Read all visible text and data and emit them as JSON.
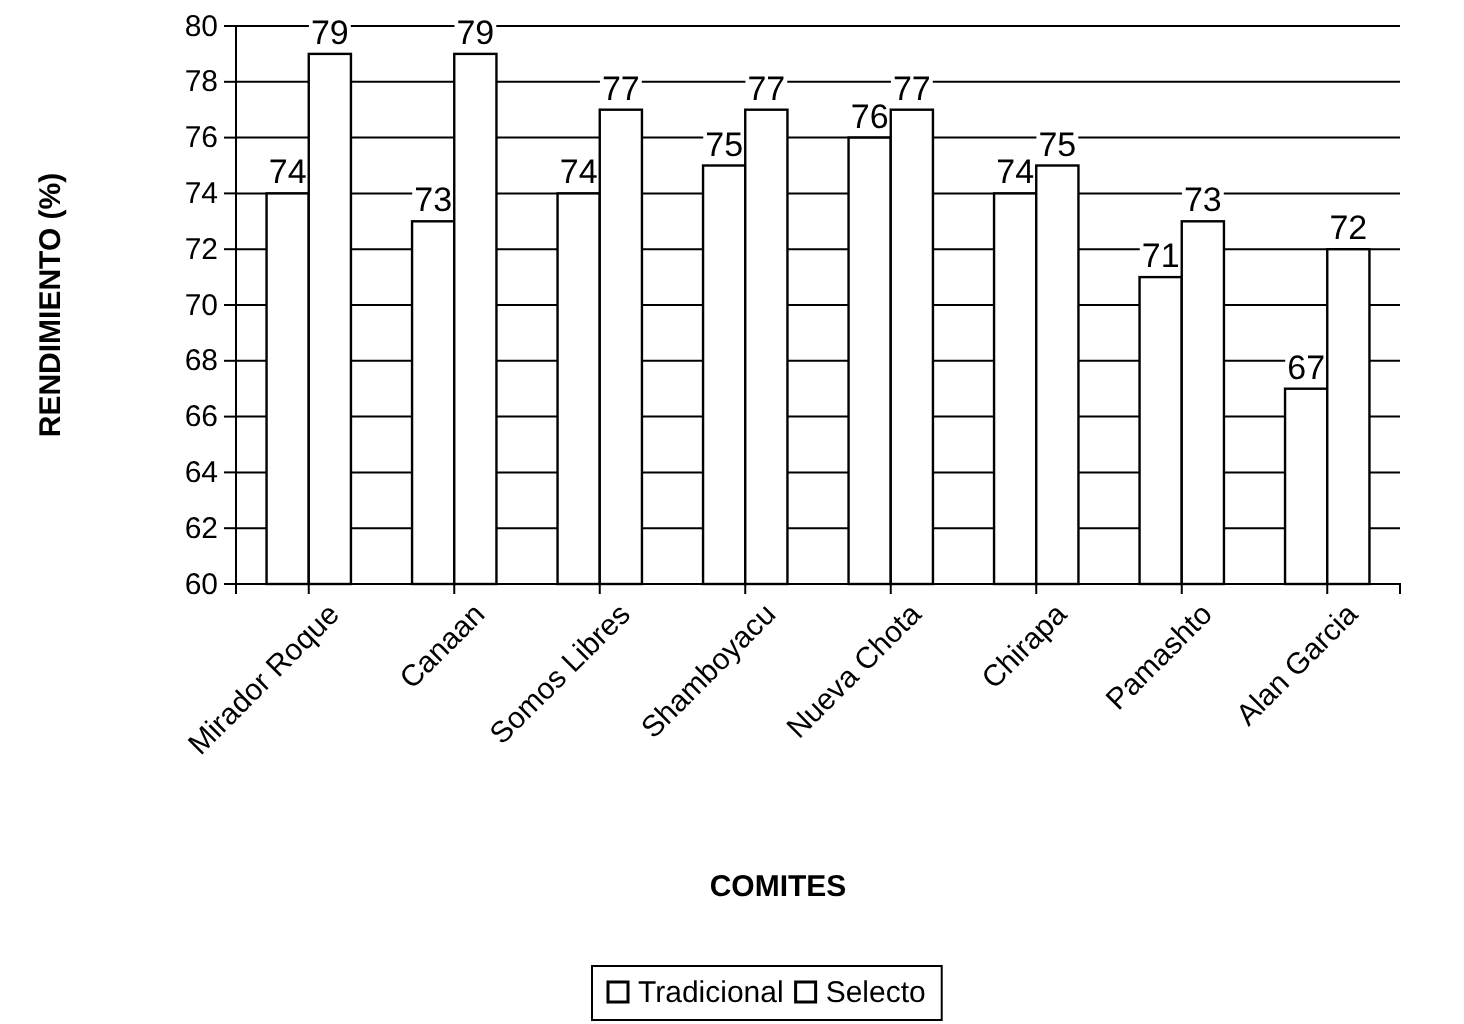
{
  "chart_data": {
    "type": "bar",
    "xlabel": "COMITES",
    "ylabel": "RENDIMIENTO (%)",
    "categories": [
      "Mirador Roque",
      "Canaan",
      "Somos Libres",
      "Shamboyacu",
      "Nueva Chota",
      "Chirapa",
      "Pamashto",
      "Alan Garcia"
    ],
    "series": [
      {
        "name": "Tradicional",
        "color": "#ffffff",
        "values": [
          74,
          73,
          74,
          75,
          76,
          74,
          71,
          67
        ]
      },
      {
        "name": "Selecto",
        "color": "#ffffff",
        "values": [
          79,
          79,
          77,
          77,
          77,
          75,
          73,
          72
        ]
      }
    ],
    "ylim": [
      60,
      80
    ],
    "yticks": [
      60,
      62,
      64,
      66,
      68,
      70,
      72,
      74,
      76,
      78,
      80
    ],
    "grid": "y",
    "legend": "bottom",
    "data_labels": true
  }
}
